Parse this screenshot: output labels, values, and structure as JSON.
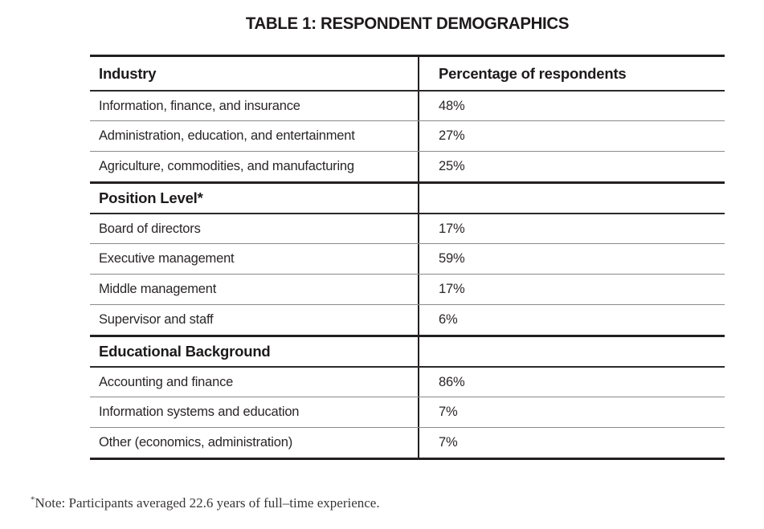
{
  "page": {
    "title": "TABLE 1: RESPONDENT DEMOGRAPHICS"
  },
  "table": {
    "header": {
      "industry": "Industry",
      "percentage": "Percentage of respondents"
    },
    "sections": [
      {
        "rows": [
          {
            "label": "Information, finance, and insurance",
            "value": "48%"
          },
          {
            "label": "Administration, education, and entertainment",
            "value": "27%"
          },
          {
            "label": "Agriculture, commodities, and manufacturing",
            "value": "25%"
          }
        ]
      },
      {
        "title": "Position Level*",
        "rows": [
          {
            "label": "Board of directors",
            "value": "17%"
          },
          {
            "label": "Executive management",
            "value": "59%"
          },
          {
            "label": "Middle management",
            "value": "17%"
          },
          {
            "label": "Supervisor and staff",
            "value": "6%"
          }
        ]
      },
      {
        "title": "Educational Background",
        "rows": [
          {
            "label": "Accounting and finance",
            "value": "86%"
          },
          {
            "label": "Information systems and education",
            "value": "7%"
          },
          {
            "label": "Other (economics, administration)",
            "value": "7%"
          }
        ]
      }
    ]
  },
  "footnote": {
    "marker": "*",
    "text": "Note: Participants averaged 22.6 years of full–time experience."
  },
  "colors": {
    "background": "#ffffff",
    "text": "#231f20",
    "rule_heavy": "#231f20",
    "rule_medium": "#2b2828",
    "rule_light": "#8a8a8a"
  },
  "chart_data": {
    "type": "table",
    "title": "TABLE 1: RESPONDENT DEMOGRAPHICS",
    "columns": [
      "Industry",
      "Percentage of respondents"
    ],
    "groups": [
      {
        "name": "Industry",
        "categories": [
          "Information, finance, and insurance",
          "Administration, education, and entertainment",
          "Agriculture, commodities, and manufacturing"
        ],
        "values_pct": [
          48,
          27,
          25
        ]
      },
      {
        "name": "Position Level*",
        "categories": [
          "Board of directors",
          "Executive management",
          "Middle management",
          "Supervisor and staff"
        ],
        "values_pct": [
          17,
          59,
          17,
          6
        ]
      },
      {
        "name": "Educational Background",
        "categories": [
          "Accounting and finance",
          "Information systems and education",
          "Other (economics, administration)"
        ],
        "values_pct": [
          86,
          7,
          7
        ]
      }
    ],
    "note": "*Note: Participants averaged 22.6 years of full–time experience."
  }
}
